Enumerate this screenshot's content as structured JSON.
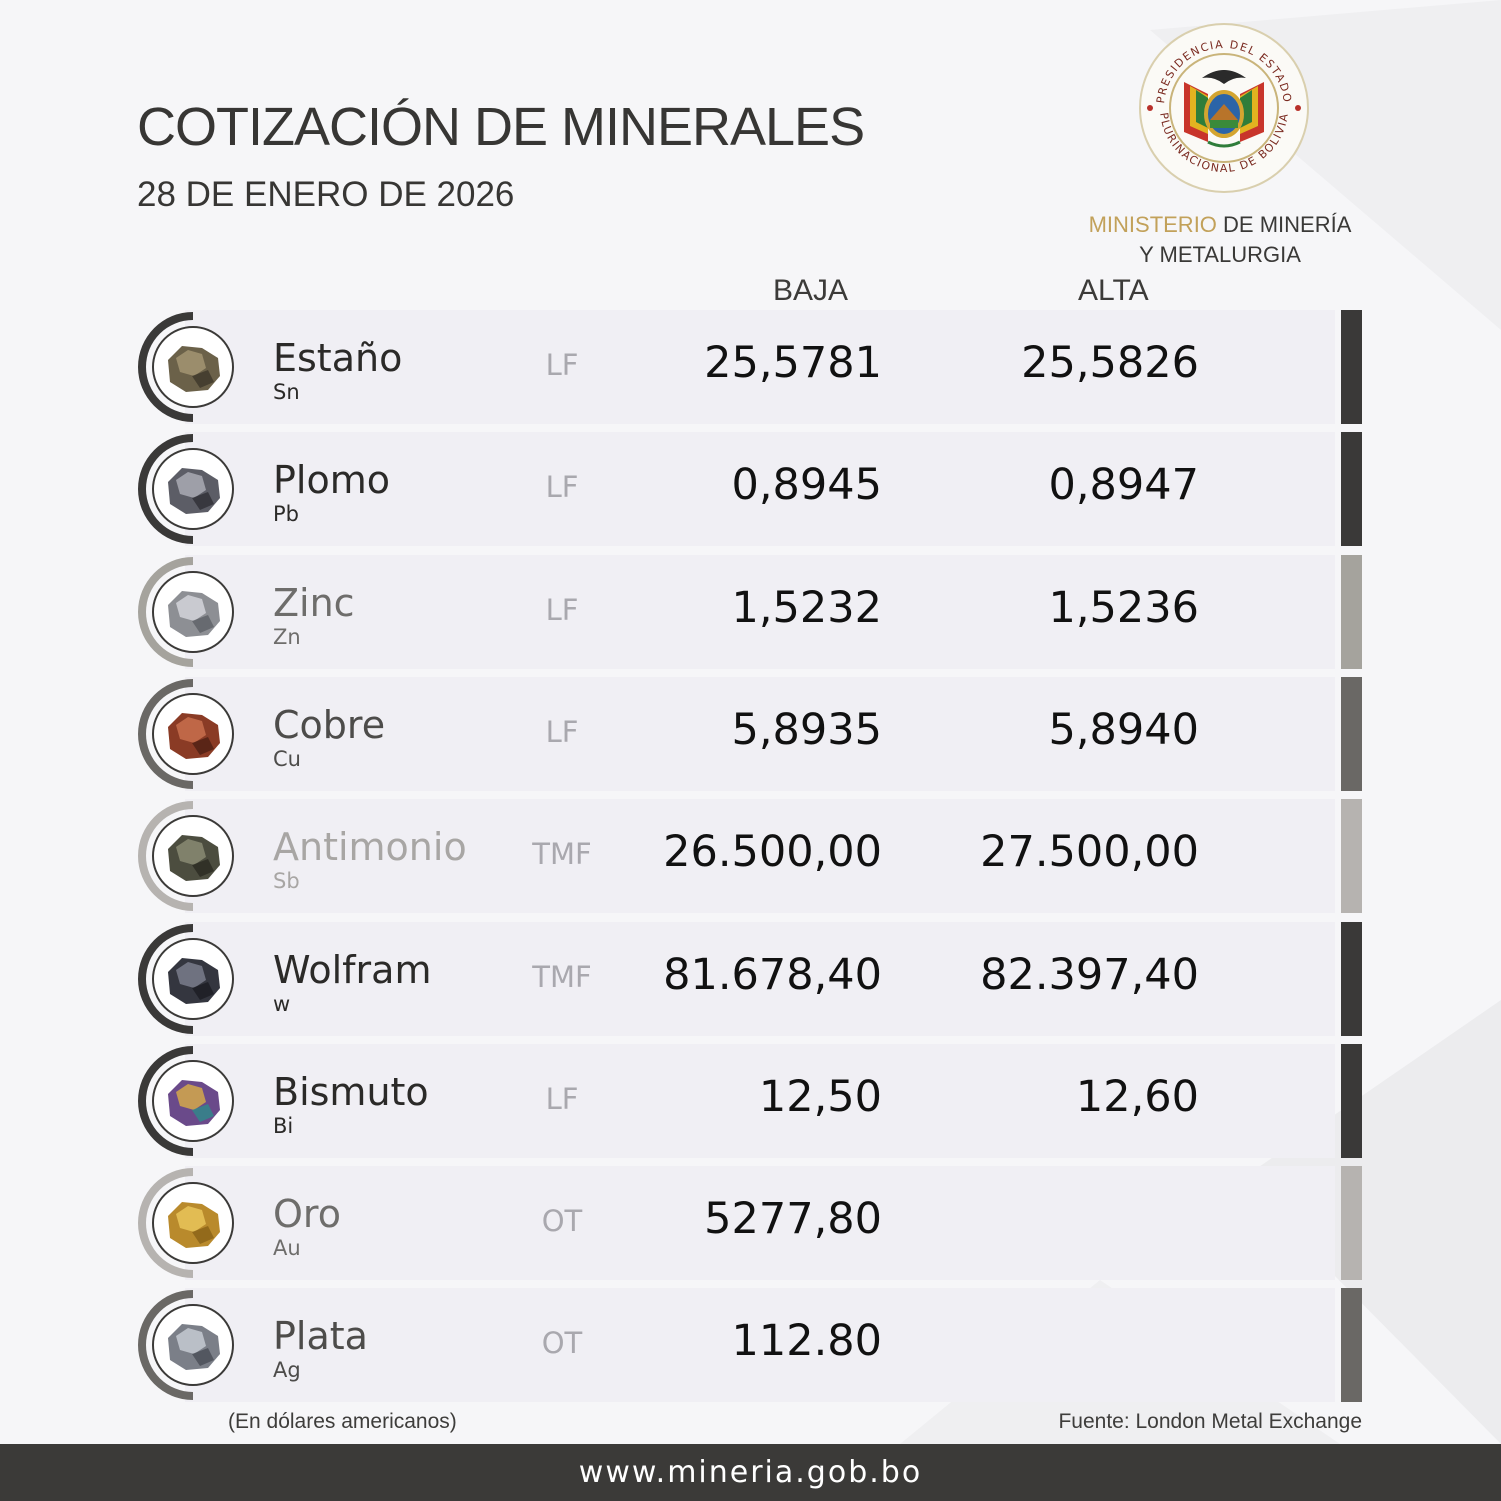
{
  "header": {
    "title": "COTIZACIÓN DE MINERALES",
    "date": "28 DE ENERO DE 2026"
  },
  "seal": {
    "top_text": "PRESIDENCIA DEL ESTADO",
    "bottom_text": "PLURINACIONAL DE BOLIVIA",
    "icon": "bolivia-coat-of-arms-icon"
  },
  "ministry": {
    "line1_highlight": "MINISTERIO",
    "line1_rest": "DE MINERÍA",
    "line2": "Y METALURGIA"
  },
  "columns": {
    "low": "BAJA",
    "high": "ALTA"
  },
  "minerals": [
    {
      "name": "Estaño",
      "symbol": "Sn",
      "unit": "LF",
      "low": "25,5781",
      "high": "25,5826",
      "accent": "#3a3938",
      "name_color": "#2b2a28",
      "icon": "tin-ore-icon"
    },
    {
      "name": "Plomo",
      "symbol": "Pb",
      "unit": "LF",
      "low": "0,8945",
      "high": "0,8947",
      "accent": "#3a3938",
      "name_color": "#2b2a28",
      "icon": "lead-ore-icon"
    },
    {
      "name": "Zinc",
      "symbol": "Zn",
      "unit": "LF",
      "low": "1,5232",
      "high": "1,5236",
      "accent": "#a5a39d",
      "name_color": "#6e6d6b",
      "icon": "zinc-ore-icon"
    },
    {
      "name": "Cobre",
      "symbol": "Cu",
      "unit": "LF",
      "low": "5,8935",
      "high": "5,8940",
      "accent": "#6a6865",
      "name_color": "#4d4c4a",
      "icon": "copper-ore-icon"
    },
    {
      "name": "Antimonio",
      "symbol": "Sb",
      "unit": "TMF",
      "low": "26.500,00",
      "high": "27.500,00",
      "accent": "#b6b3b0",
      "name_color": "#a8a6a4",
      "icon": "antimony-ore-icon"
    },
    {
      "name": "Wolfram",
      "symbol": "w",
      "unit": "TMF",
      "low": "81.678,40",
      "high": "82.397,40",
      "accent": "#3a3938",
      "name_color": "#2b2a28",
      "icon": "wolfram-ore-icon"
    },
    {
      "name": "Bismuto",
      "symbol": "Bi",
      "unit": "LF",
      "low": "12,50",
      "high": "12,60",
      "accent": "#3a3938",
      "name_color": "#2b2a28",
      "icon": "bismuth-crystal-icon"
    },
    {
      "name": "Oro",
      "symbol": "Au",
      "unit": "OT",
      "low": "5277,80",
      "high": "",
      "accent": "#b6b3b0",
      "name_color": "#6e6d6b",
      "icon": "gold-nugget-icon"
    },
    {
      "name": "Plata",
      "symbol": "Ag",
      "unit": "OT",
      "low": "112.80",
      "high": "",
      "accent": "#6a6865",
      "name_color": "#4d4c4a",
      "icon": "silver-ore-icon"
    }
  ],
  "notes": {
    "currency": "(En dólares americanos)",
    "source": "Fuente: London Metal Exchange"
  },
  "footer": {
    "url": "www.mineria.gob.bo"
  }
}
